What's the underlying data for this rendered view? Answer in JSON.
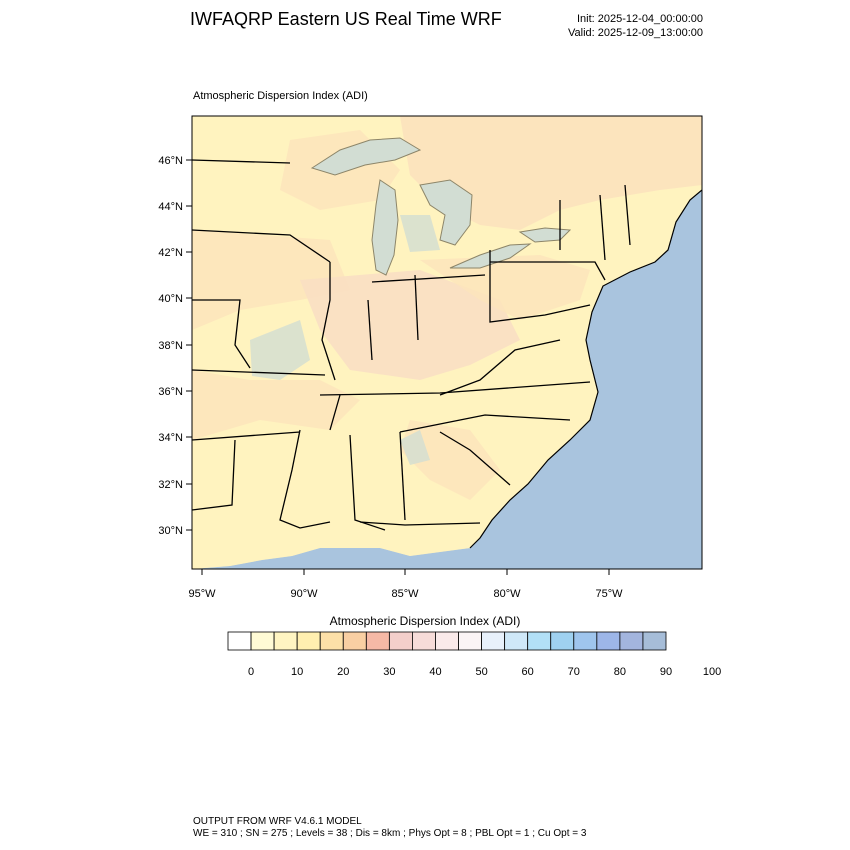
{
  "header": {
    "title": "IWFAQRP Eastern US Real Time WRF",
    "init": "Init: 2025-12-04_00:00:00",
    "valid": "Valid: 2025-12-09_13:00:00"
  },
  "field_title": "Atmospheric Dispersion Index   (ADI)",
  "map": {
    "lat_labels": [
      "46°N",
      "44°N",
      "42°N",
      "40°N",
      "38°N",
      "36°N",
      "34°N",
      "32°N",
      "30°N"
    ],
    "lon_labels": [
      "95°W",
      "90°W",
      "85°W",
      "80°W",
      "75°W"
    ],
    "colors": {
      "ocean": "#a9c4de",
      "land_low": "#fff3bf",
      "land_mid": "#f9d3b7",
      "land_high": "#f2c9c8",
      "lake": "#9cc4ea"
    }
  },
  "colorbar": {
    "title": "Atmospheric Dispersion Index  (ADI)",
    "tick_labels": [
      "0",
      "10",
      "20",
      "30",
      "40",
      "50",
      "60",
      "70",
      "80",
      "90",
      "100"
    ],
    "colors": [
      "#ffffff",
      "#fffbd5",
      "#fff5c2",
      "#ffefb0",
      "#fde0a8",
      "#f9cfa3",
      "#f6b9a6",
      "#f4cfcb",
      "#f7dcd9",
      "#faeaea",
      "#fbf5f6",
      "#e8f1fb",
      "#cfe8f8",
      "#b2e0f7",
      "#9fd1f0",
      "#9fc5ed",
      "#9db6e8",
      "#a3b5de",
      "#a6bdd8"
    ]
  },
  "footer": {
    "line1": "OUTPUT FROM WRF V4.6.1 MODEL",
    "line2": "WE = 310 ; SN = 275 ; Levels = 38 ; Dis = 8km ; Phys Opt = 8 ; PBL Opt = 1 ; Cu Opt = 3"
  }
}
